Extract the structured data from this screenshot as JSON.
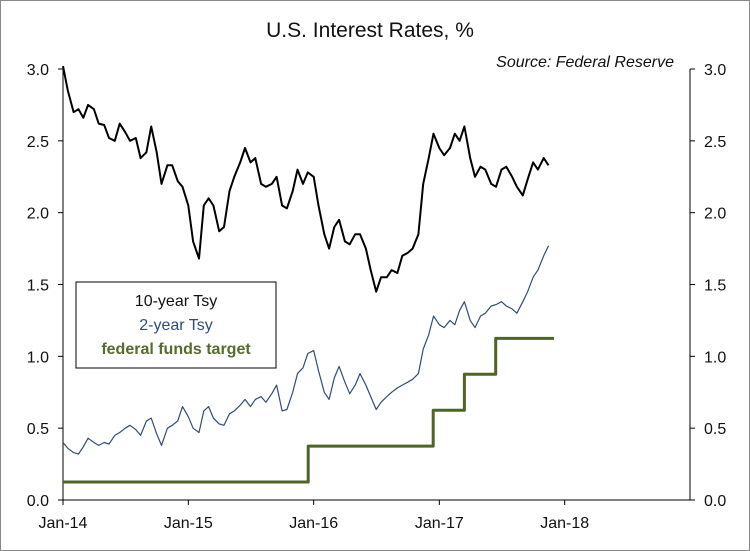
{
  "chart_data": {
    "type": "line",
    "title": "U.S. Interest Rates, %",
    "source": "Source: Federal Reserve",
    "ylim": [
      0,
      3.0
    ],
    "y_ticks": [
      0.0,
      0.5,
      1.0,
      1.5,
      2.0,
      2.5,
      3.0
    ],
    "y_tick_labels": [
      "0.0",
      "0.5",
      "1.0",
      "1.5",
      "2.0",
      "2.5",
      "3.0"
    ],
    "x_ticks": [
      "2014-01-01",
      "2015-01-01",
      "2016-01-01",
      "2017-01-01",
      "2018-01-01"
    ],
    "x_tick_labels": [
      "Jan-14",
      "Jan-15",
      "Jan-16",
      "Jan-17",
      "Jan-18"
    ],
    "xlim": [
      "2014-01-01",
      "2019-01-01"
    ],
    "grid": false,
    "legend_position": "left-middle",
    "legend": [
      "10-year Tsy",
      "2-year Tsy",
      "federal funds target"
    ],
    "colors": {
      "ten_year": "#000000",
      "two_year": "#2f4d7a",
      "fed_funds": "#4d6624"
    },
    "series": [
      {
        "name": "10-year Tsy",
        "x": [
          "2014-01-01",
          "2014-01-15",
          "2014-02-01",
          "2014-02-15",
          "2014-03-01",
          "2014-03-15",
          "2014-04-01",
          "2014-04-15",
          "2014-05-01",
          "2014-05-15",
          "2014-06-01",
          "2014-06-15",
          "2014-07-01",
          "2014-07-15",
          "2014-08-01",
          "2014-08-15",
          "2014-09-01",
          "2014-09-15",
          "2014-10-01",
          "2014-10-15",
          "2014-11-01",
          "2014-11-15",
          "2014-12-01",
          "2014-12-15",
          "2015-01-01",
          "2015-01-15",
          "2015-02-01",
          "2015-02-15",
          "2015-03-01",
          "2015-03-15",
          "2015-04-01",
          "2015-04-15",
          "2015-05-01",
          "2015-05-15",
          "2015-06-01",
          "2015-06-15",
          "2015-07-01",
          "2015-07-15",
          "2015-08-01",
          "2015-08-15",
          "2015-09-01",
          "2015-09-15",
          "2015-10-01",
          "2015-10-15",
          "2015-11-01",
          "2015-11-15",
          "2015-12-01",
          "2015-12-15",
          "2016-01-01",
          "2016-01-15",
          "2016-02-01",
          "2016-02-15",
          "2016-03-01",
          "2016-03-15",
          "2016-04-01",
          "2016-04-15",
          "2016-05-01",
          "2016-05-15",
          "2016-06-01",
          "2016-06-15",
          "2016-07-01",
          "2016-07-15",
          "2016-08-01",
          "2016-08-15",
          "2016-09-01",
          "2016-09-15",
          "2016-10-01",
          "2016-10-15",
          "2016-11-01",
          "2016-11-15",
          "2016-12-01",
          "2016-12-15",
          "2017-01-01",
          "2017-01-15",
          "2017-02-01",
          "2017-02-15",
          "2017-03-01",
          "2017-03-15",
          "2017-04-01",
          "2017-04-15",
          "2017-05-01",
          "2017-05-15",
          "2017-06-01",
          "2017-06-15",
          "2017-07-01",
          "2017-07-15",
          "2017-08-01",
          "2017-08-15",
          "2017-09-01",
          "2017-09-15",
          "2017-10-01",
          "2017-10-15",
          "2017-11-01",
          "2017-11-15"
        ],
        "values": [
          3.02,
          2.85,
          2.7,
          2.72,
          2.66,
          2.75,
          2.72,
          2.62,
          2.61,
          2.52,
          2.5,
          2.62,
          2.56,
          2.5,
          2.52,
          2.38,
          2.42,
          2.6,
          2.42,
          2.2,
          2.33,
          2.33,
          2.22,
          2.18,
          2.05,
          1.8,
          1.68,
          2.05,
          2.1,
          2.05,
          1.87,
          1.9,
          2.15,
          2.25,
          2.35,
          2.45,
          2.35,
          2.38,
          2.2,
          2.18,
          2.2,
          2.25,
          2.05,
          2.03,
          2.15,
          2.3,
          2.2,
          2.28,
          2.25,
          2.05,
          1.85,
          1.75,
          1.9,
          1.95,
          1.8,
          1.78,
          1.85,
          1.85,
          1.75,
          1.6,
          1.45,
          1.55,
          1.55,
          1.6,
          1.58,
          1.7,
          1.72,
          1.75,
          1.85,
          2.2,
          2.38,
          2.55,
          2.45,
          2.4,
          2.45,
          2.55,
          2.5,
          2.6,
          2.38,
          2.25,
          2.32,
          2.3,
          2.2,
          2.18,
          2.3,
          2.32,
          2.25,
          2.18,
          2.12,
          2.23,
          2.35,
          2.3,
          2.38,
          2.33
        ]
      },
      {
        "name": "2-year Tsy",
        "x": [
          "2014-01-01",
          "2014-01-15",
          "2014-02-01",
          "2014-02-15",
          "2014-03-01",
          "2014-03-15",
          "2014-04-01",
          "2014-04-15",
          "2014-05-01",
          "2014-05-15",
          "2014-06-01",
          "2014-06-15",
          "2014-07-01",
          "2014-07-15",
          "2014-08-01",
          "2014-08-15",
          "2014-09-01",
          "2014-09-15",
          "2014-10-01",
          "2014-10-15",
          "2014-11-01",
          "2014-11-15",
          "2014-12-01",
          "2014-12-15",
          "2015-01-01",
          "2015-01-15",
          "2015-02-01",
          "2015-02-15",
          "2015-03-01",
          "2015-03-15",
          "2015-04-01",
          "2015-04-15",
          "2015-05-01",
          "2015-05-15",
          "2015-06-01",
          "2015-06-15",
          "2015-07-01",
          "2015-07-15",
          "2015-08-01",
          "2015-08-15",
          "2015-09-01",
          "2015-09-15",
          "2015-10-01",
          "2015-10-15",
          "2015-11-01",
          "2015-11-15",
          "2015-12-01",
          "2015-12-15",
          "2016-01-01",
          "2016-01-15",
          "2016-02-01",
          "2016-02-15",
          "2016-03-01",
          "2016-03-15",
          "2016-04-01",
          "2016-04-15",
          "2016-05-01",
          "2016-05-15",
          "2016-06-01",
          "2016-06-15",
          "2016-07-01",
          "2016-07-15",
          "2016-08-01",
          "2016-08-15",
          "2016-09-01",
          "2016-09-15",
          "2016-10-01",
          "2016-10-15",
          "2016-11-01",
          "2016-11-15",
          "2016-12-01",
          "2016-12-15",
          "2017-01-01",
          "2017-01-15",
          "2017-02-01",
          "2017-02-15",
          "2017-03-01",
          "2017-03-15",
          "2017-04-01",
          "2017-04-15",
          "2017-05-01",
          "2017-05-15",
          "2017-06-01",
          "2017-06-15",
          "2017-07-01",
          "2017-07-15",
          "2017-08-01",
          "2017-08-15",
          "2017-09-01",
          "2017-09-15",
          "2017-10-01",
          "2017-10-15",
          "2017-11-01",
          "2017-11-15"
        ],
        "values": [
          0.4,
          0.36,
          0.33,
          0.32,
          0.37,
          0.43,
          0.4,
          0.38,
          0.4,
          0.39,
          0.45,
          0.47,
          0.5,
          0.52,
          0.49,
          0.45,
          0.55,
          0.57,
          0.46,
          0.38,
          0.5,
          0.52,
          0.55,
          0.65,
          0.58,
          0.5,
          0.47,
          0.62,
          0.65,
          0.57,
          0.53,
          0.52,
          0.6,
          0.62,
          0.66,
          0.7,
          0.65,
          0.7,
          0.72,
          0.68,
          0.74,
          0.8,
          0.62,
          0.63,
          0.75,
          0.88,
          0.92,
          1.02,
          1.04,
          0.9,
          0.75,
          0.7,
          0.85,
          0.93,
          0.82,
          0.74,
          0.8,
          0.88,
          0.8,
          0.72,
          0.63,
          0.68,
          0.72,
          0.75,
          0.78,
          0.8,
          0.82,
          0.84,
          0.88,
          1.05,
          1.15,
          1.28,
          1.22,
          1.2,
          1.25,
          1.22,
          1.32,
          1.38,
          1.25,
          1.2,
          1.28,
          1.3,
          1.35,
          1.36,
          1.38,
          1.35,
          1.33,
          1.3,
          1.38,
          1.45,
          1.55,
          1.6,
          1.7,
          1.77
        ]
      },
      {
        "name": "federal funds target",
        "x": [
          "2014-01-01",
          "2015-12-16",
          "2015-12-16",
          "2016-12-14",
          "2016-12-14",
          "2017-03-15",
          "2017-03-15",
          "2017-06-14",
          "2017-06-14",
          "2017-12-01"
        ],
        "values": [
          0.125,
          0.125,
          0.375,
          0.375,
          0.625,
          0.625,
          0.875,
          0.875,
          1.125,
          1.125
        ]
      }
    ]
  }
}
